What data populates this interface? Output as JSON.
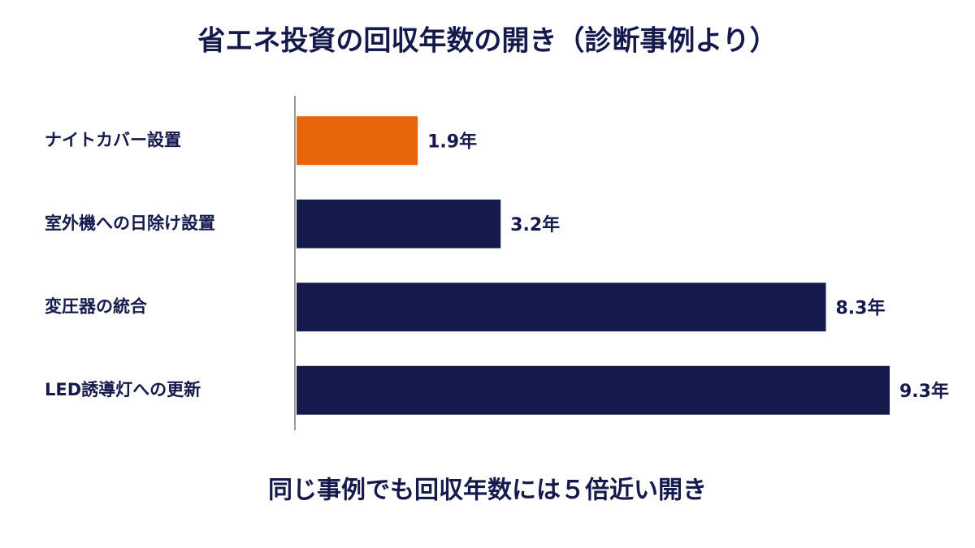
{
  "chart_data": {
    "type": "hbar",
    "title": "省エネ投資の回収年数の開き（診断事例より）",
    "categories": [
      "ナイトカバー設置",
      "室外機への日除け設置",
      "変圧器の統合",
      "LED誘導灯への更新"
    ],
    "values": [
      1.9,
      3.2,
      8.3,
      9.3
    ],
    "value_labels": [
      "1.9年",
      "3.2年",
      "8.3年",
      "9.3年"
    ],
    "colors": [
      "#e8640a",
      "#151a4d",
      "#151a4d",
      "#151a4d"
    ],
    "annotation": "同じ事例でも回収年数には５倍近い開き"
  }
}
